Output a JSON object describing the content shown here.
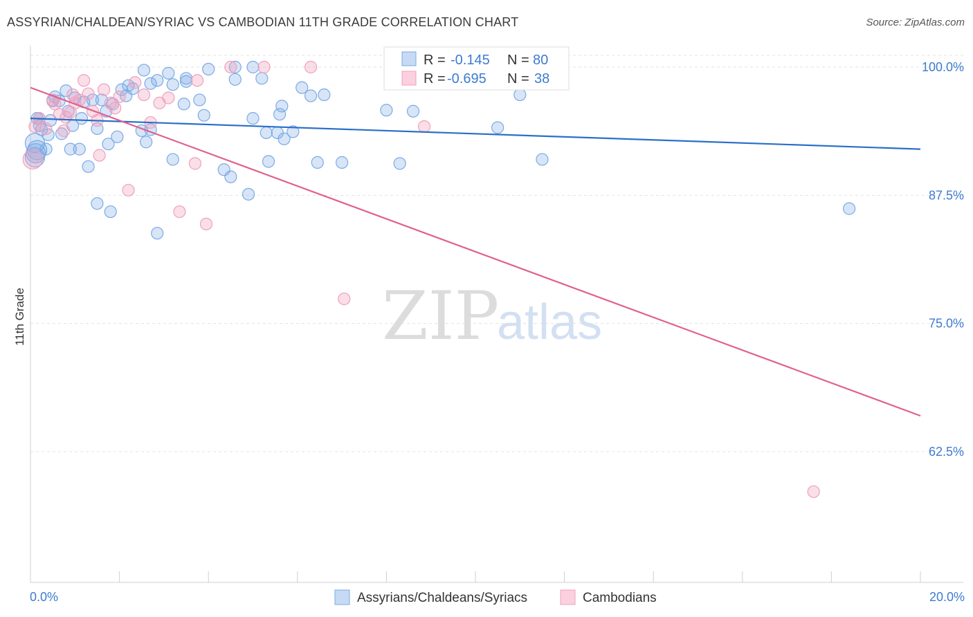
{
  "title": "ASSYRIAN/CHALDEAN/SYRIAC VS CAMBODIAN 11TH GRADE CORRELATION CHART",
  "source": "Source: ZipAtlas.com",
  "watermark": {
    "zip": "ZIP",
    "atlas": "atlas"
  },
  "chart_data": {
    "type": "scatter",
    "ylabel": "11th Grade",
    "xlim": [
      0,
      20
    ],
    "ylim": [
      50,
      101.5
    ],
    "x_tick_labels": [
      {
        "value": 0,
        "label": "0.0%"
      },
      {
        "value": 20,
        "label": "20.0%"
      }
    ],
    "y_tick_labels": [
      {
        "value": 100,
        "label": "100.0%"
      },
      {
        "value": 87.5,
        "label": "87.5%"
      },
      {
        "value": 75,
        "label": "75.0%"
      },
      {
        "value": 62.5,
        "label": "62.5%"
      }
    ],
    "grid": true,
    "legend_position": "top-center",
    "series": [
      {
        "name": "Assyrians/Chaldeans/Syriacs",
        "color": "#7aaae6",
        "line_color": "#2a6fc9",
        "r_label": "R =",
        "r_value": "-0.145",
        "n_label": "N =",
        "n_value": "80",
        "trend": {
          "x": [
            0,
            20
          ],
          "y": [
            95.0,
            92.0
          ]
        },
        "points": [
          [
            0.1,
            92.6
          ],
          [
            0.15,
            91.9
          ],
          [
            0.15,
            95.0
          ],
          [
            0.2,
            94.3
          ],
          [
            0.25,
            93.9
          ],
          [
            0.35,
            92.0
          ],
          [
            0.4,
            93.4
          ],
          [
            0.45,
            94.8
          ],
          [
            0.5,
            96.7
          ],
          [
            0.55,
            97.1
          ],
          [
            0.65,
            96.7
          ],
          [
            0.7,
            93.5
          ],
          [
            0.8,
            97.7
          ],
          [
            0.85,
            95.7
          ],
          [
            0.9,
            92.0
          ],
          [
            0.95,
            94.3
          ],
          [
            1.0,
            97.0
          ],
          [
            1.1,
            92.0
          ],
          [
            1.15,
            95.0
          ],
          [
            1.2,
            96.6
          ],
          [
            1.3,
            90.3
          ],
          [
            1.4,
            96.8
          ],
          [
            1.5,
            86.7
          ],
          [
            1.5,
            94.0
          ],
          [
            1.6,
            96.8
          ],
          [
            1.7,
            95.7
          ],
          [
            1.75,
            92.5
          ],
          [
            1.8,
            85.9
          ],
          [
            1.85,
            96.4
          ],
          [
            1.95,
            93.2
          ],
          [
            2.05,
            97.8
          ],
          [
            2.15,
            97.2
          ],
          [
            2.2,
            98.2
          ],
          [
            2.3,
            97.9
          ],
          [
            2.5,
            93.8
          ],
          [
            2.55,
            99.7
          ],
          [
            2.6,
            92.7
          ],
          [
            2.7,
            98.4
          ],
          [
            2.7,
            93.9
          ],
          [
            2.85,
            98.7
          ],
          [
            2.85,
            83.8
          ],
          [
            3.1,
            99.4
          ],
          [
            3.2,
            98.3
          ],
          [
            3.2,
            91.0
          ],
          [
            3.45,
            96.4
          ],
          [
            3.5,
            98.6
          ],
          [
            3.5,
            98.9
          ],
          [
            3.8,
            96.8
          ],
          [
            3.9,
            95.3
          ],
          [
            4.0,
            99.8
          ],
          [
            4.35,
            90.0
          ],
          [
            4.5,
            89.3
          ],
          [
            4.6,
            98.8
          ],
          [
            4.6,
            100.0
          ],
          [
            4.9,
            87.6
          ],
          [
            5.0,
            100.0
          ],
          [
            5.0,
            95.0
          ],
          [
            5.2,
            98.9
          ],
          [
            5.3,
            93.6
          ],
          [
            5.35,
            90.8
          ],
          [
            5.55,
            93.6
          ],
          [
            5.6,
            95.4
          ],
          [
            5.65,
            96.2
          ],
          [
            5.7,
            93.0
          ],
          [
            5.9,
            93.7
          ],
          [
            6.1,
            98.0
          ],
          [
            6.3,
            97.2
          ],
          [
            6.45,
            90.7
          ],
          [
            6.6,
            97.3
          ],
          [
            7.0,
            90.7
          ],
          [
            8.0,
            95.8
          ],
          [
            8.3,
            90.6
          ],
          [
            8.6,
            95.7
          ],
          [
            10.5,
            94.1
          ],
          [
            11.0,
            97.3
          ],
          [
            11.5,
            91.0
          ],
          [
            18.4,
            86.2
          ],
          [
            0.1,
            91.2
          ],
          [
            0.12,
            91.6
          ],
          [
            0.2,
            95.0
          ]
        ]
      },
      {
        "name": "Cambodians",
        "color": "#f0a0bc",
        "line_color": "#e0608c",
        "r_label": "R =",
        "r_value": "-0.695",
        "n_label": "N =",
        "n_value": "38",
        "trend": {
          "x": [
            0,
            20
          ],
          "y": [
            98.0,
            66.0
          ]
        },
        "points": [
          [
            0.05,
            91.0
          ],
          [
            0.1,
            94.2
          ],
          [
            0.2,
            95.0
          ],
          [
            0.35,
            94.0
          ],
          [
            0.5,
            96.8
          ],
          [
            0.55,
            96.4
          ],
          [
            0.65,
            95.4
          ],
          [
            0.75,
            93.8
          ],
          [
            0.8,
            95.1
          ],
          [
            0.9,
            95.6
          ],
          [
            0.95,
            97.3
          ],
          [
            1.0,
            96.5
          ],
          [
            1.1,
            96.8
          ],
          [
            1.2,
            98.7
          ],
          [
            1.3,
            97.4
          ],
          [
            1.4,
            95.7
          ],
          [
            1.5,
            94.8
          ],
          [
            1.55,
            91.4
          ],
          [
            1.65,
            97.8
          ],
          [
            1.8,
            96.5
          ],
          [
            1.9,
            96.0
          ],
          [
            2.0,
            97.1
          ],
          [
            2.2,
            88.0
          ],
          [
            2.35,
            98.5
          ],
          [
            2.55,
            97.3
          ],
          [
            2.7,
            94.6
          ],
          [
            2.9,
            96.5
          ],
          [
            3.1,
            97.0
          ],
          [
            3.35,
            85.9
          ],
          [
            3.7,
            90.6
          ],
          [
            3.75,
            98.7
          ],
          [
            3.95,
            84.7
          ],
          [
            4.5,
            100.0
          ],
          [
            5.25,
            100.0
          ],
          [
            6.3,
            100.0
          ],
          [
            7.05,
            77.4
          ],
          [
            8.85,
            94.2
          ],
          [
            17.6,
            58.6
          ]
        ]
      }
    ]
  }
}
